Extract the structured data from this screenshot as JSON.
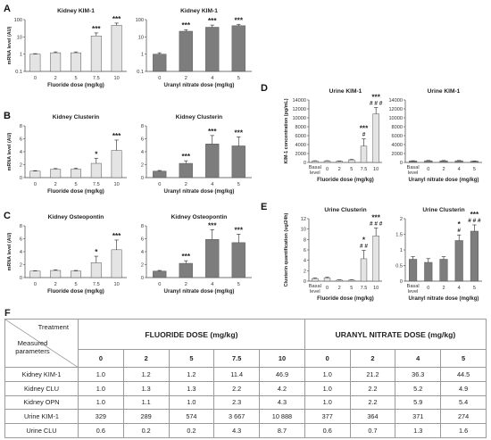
{
  "panel_labels": [
    "A",
    "B",
    "C",
    "D",
    "E",
    "F"
  ],
  "chart_data": [
    {
      "id": "A1",
      "type": "bar",
      "title": "Kidney KIM-1",
      "ylabel": "mRNA level (AU)",
      "xlabel": "Fluoride dose (mg/kg)",
      "yscale": "log",
      "ylim": [
        0.1,
        100
      ],
      "yticks": [
        "0.1",
        "1",
        "10",
        "100"
      ],
      "categories": [
        "0",
        "2",
        "5",
        "7.5",
        "10"
      ],
      "values": [
        1.0,
        1.2,
        1.2,
        11.4,
        46.9
      ],
      "errors": [
        0.07,
        0.15,
        0.15,
        5.5,
        16
      ],
      "color": "#e4e4e4",
      "marks": [
        {
          "i": 3,
          "stars": "***"
        },
        {
          "i": 4,
          "stars": "***"
        }
      ]
    },
    {
      "id": "A2",
      "type": "bar",
      "title": "Kidney KIM-1",
      "ylabel": "",
      "xlabel": "Uranyl nitrate dose (mg/kg)",
      "yscale": "log",
      "ylim": [
        0.1,
        100
      ],
      "yticks": [
        "0.1",
        "1",
        "10",
        "100"
      ],
      "categories": [
        "0",
        "2",
        "4",
        "5"
      ],
      "values": [
        1.0,
        21.2,
        36.3,
        44.5
      ],
      "errors": [
        0.2,
        5,
        12,
        9
      ],
      "color": "#7d7d7d",
      "marks": [
        {
          "i": 1,
          "stars": "***"
        },
        {
          "i": 2,
          "stars": "***"
        },
        {
          "i": 3,
          "stars": "***"
        }
      ]
    },
    {
      "id": "B1",
      "type": "bar",
      "title": "Kidney Clusterin",
      "ylabel": "mRNA level (AU)",
      "xlabel": "Fluoride dose (mg/kg)",
      "yscale": "linear",
      "ylim": [
        0,
        8
      ],
      "yticks": [
        "0",
        "2",
        "4",
        "6",
        "8"
      ],
      "categories": [
        "0",
        "2",
        "5",
        "7.5",
        "10"
      ],
      "values": [
        1.0,
        1.3,
        1.3,
        2.2,
        4.2
      ],
      "errors": [
        0.08,
        0.1,
        0.15,
        0.8,
        1.6
      ],
      "color": "#e4e4e4",
      "marks": [
        {
          "i": 3,
          "stars": "*"
        },
        {
          "i": 4,
          "stars": "***"
        }
      ]
    },
    {
      "id": "B2",
      "type": "bar",
      "title": "Kidney Clusterin",
      "ylabel": "",
      "xlabel": "Uranyl nitrate dose (mg/kg)",
      "yscale": "linear",
      "ylim": [
        0,
        8
      ],
      "yticks": [
        "0",
        "2",
        "4",
        "6",
        "8"
      ],
      "categories": [
        "0",
        "2",
        "4",
        "5"
      ],
      "values": [
        1.0,
        2.2,
        5.2,
        4.9
      ],
      "errors": [
        0.1,
        0.4,
        1.3,
        1.4
      ],
      "color": "#7d7d7d",
      "marks": [
        {
          "i": 1,
          "stars": "***"
        },
        {
          "i": 2,
          "stars": "***"
        },
        {
          "i": 3,
          "stars": "***"
        }
      ]
    },
    {
      "id": "C1",
      "type": "bar",
      "title": "Kidney Osteopontin",
      "ylabel": "mRNA level (AU)",
      "xlabel": "Fluoride dose (mg/kg)",
      "yscale": "linear",
      "ylim": [
        0,
        8
      ],
      "yticks": [
        "0",
        "2",
        "4",
        "6",
        "8"
      ],
      "categories": [
        "0",
        "2",
        "5",
        "7.5",
        "10"
      ],
      "values": [
        1.0,
        1.1,
        1.0,
        2.3,
        4.3
      ],
      "errors": [
        0.05,
        0.1,
        0.1,
        1.0,
        1.5
      ],
      "color": "#e4e4e4",
      "marks": [
        {
          "i": 3,
          "stars": "*"
        },
        {
          "i": 4,
          "stars": "***"
        }
      ]
    },
    {
      "id": "C2",
      "type": "bar",
      "title": "Kidney Osteopontin",
      "ylabel": "",
      "xlabel": "Uranyl nitrate dose (mg/kg)",
      "yscale": "linear",
      "ylim": [
        0,
        8
      ],
      "yticks": [
        "0",
        "2",
        "4",
        "6",
        "8"
      ],
      "categories": [
        "0",
        "2",
        "4",
        "5"
      ],
      "values": [
        1.0,
        2.2,
        5.9,
        5.4
      ],
      "errors": [
        0.1,
        0.4,
        1.5,
        1.3
      ],
      "color": "#7d7d7d",
      "marks": [
        {
          "i": 1,
          "stars": "***"
        },
        {
          "i": 2,
          "stars": "***"
        },
        {
          "i": 3,
          "stars": "***"
        }
      ]
    },
    {
      "id": "D1",
      "type": "bar",
      "title": "Urine  KIM-1",
      "ylabel": "KIM-1 concentration (pg/mL)",
      "xlabel": "Fluoride dose (mg/kg)",
      "yscale": "linear",
      "ylim": [
        0,
        14000
      ],
      "yticks": [
        "0",
        "2000",
        "4000",
        "6000",
        "8000",
        "10000",
        "12000",
        "14000"
      ],
      "categories": [
        "Basal level",
        "0",
        "2",
        "5",
        "7.5",
        "10"
      ],
      "values": [
        320,
        329,
        289,
        574,
        3667,
        10888
      ],
      "errors": [
        60,
        60,
        50,
        100,
        1600,
        1400
      ],
      "color": "#e4e4e4",
      "marks": [
        {
          "i": 4,
          "stars": "***",
          "hash": "#"
        },
        {
          "i": 5,
          "stars": "***",
          "hash": "# # #"
        }
      ]
    },
    {
      "id": "D2",
      "type": "bar",
      "title": "Urine KIM-1",
      "ylabel": "",
      "xlabel": "Uranyl nitrate dose (mg/kg)",
      "yscale": "linear",
      "ylim": [
        0,
        14000
      ],
      "yticks": [
        "0",
        "2000",
        "4000",
        "6000",
        "8000",
        "10000",
        "12000",
        "14000"
      ],
      "categories": [
        "Basal level",
        "0",
        "2",
        "4",
        "5"
      ],
      "values": [
        320,
        377,
        364,
        371,
        274
      ],
      "errors": [
        60,
        60,
        60,
        60,
        50
      ],
      "color": "#7d7d7d",
      "marks": []
    },
    {
      "id": "E1",
      "type": "bar",
      "title": "Urine  Clusterin",
      "ylabel": "Clusterin quantification (ug/24h)",
      "xlabel": "Fluoride dose (mg/kg)",
      "yscale": "linear",
      "ylim": [
        0,
        12
      ],
      "yticks": [
        "0",
        "2",
        "4",
        "6",
        "8",
        "10",
        "12"
      ],
      "categories": [
        "Basal level",
        "0",
        "2",
        "5",
        "7.5",
        "10"
      ],
      "values": [
        0.5,
        0.6,
        0.2,
        0.2,
        4.3,
        8.7
      ],
      "errors": [
        0.1,
        0.15,
        0.05,
        0.05,
        1.6,
        1.5
      ],
      "color": "#e4e4e4",
      "marks": [
        {
          "i": 4,
          "stars": "*",
          "hash": "# #"
        },
        {
          "i": 5,
          "stars": "***",
          "hash": "# # #"
        }
      ]
    },
    {
      "id": "E2",
      "type": "bar",
      "title": "Urine Clusterin",
      "ylabel": "",
      "xlabel": "Uranyl nitrate dose (mg/kg)",
      "yscale": "linear",
      "ylim": [
        0,
        2
      ],
      "yticks": [
        "0",
        "0.5",
        "1",
        "1.5",
        "2"
      ],
      "categories": [
        "Basal level",
        "0",
        "2",
        "4",
        "5"
      ],
      "values": [
        0.7,
        0.6,
        0.7,
        1.3,
        1.6
      ],
      "errors": [
        0.08,
        0.12,
        0.08,
        0.18,
        0.2
      ],
      "color": "#7d7d7d",
      "marks": [
        {
          "i": 3,
          "stars": "*",
          "hash": "#"
        },
        {
          "i": 4,
          "stars": "***",
          "hash": "# # #"
        }
      ]
    }
  ],
  "table": {
    "header_treatment": "Treatment",
    "header_measured": "Measured parameters",
    "group_fluoride": "FLUORIDE DOSE (mg/kg)",
    "group_uranyl": "URANYL NITRATE DOSE (mg/kg)",
    "doses": [
      "0",
      "2",
      "5",
      "7.5",
      "10",
      "0",
      "2",
      "4",
      "5"
    ],
    "rows": [
      {
        "label": "Kidney KIM-1",
        "values": [
          "1.0",
          "1.2",
          "1.2",
          "11.4",
          "46.9",
          "1.0",
          "21.2",
          "36.3",
          "44.5"
        ]
      },
      {
        "label": "Kidney CLU",
        "values": [
          "1.0",
          "1.3",
          "1.3",
          "2.2",
          "4.2",
          "1.0",
          "2.2",
          "5.2",
          "4.9"
        ]
      },
      {
        "label": "Kidney OPN",
        "values": [
          "1.0",
          "1.1",
          "1.0",
          "2.3",
          "4.3",
          "1.0",
          "2.2",
          "5.9",
          "5.4"
        ]
      },
      {
        "label": "Urine KIM-1",
        "values": [
          "329",
          "289",
          "574",
          "3 667",
          "10 888",
          "377",
          "364",
          "371",
          "274"
        ]
      },
      {
        "label": "Urine CLU",
        "values": [
          "0.6",
          "0.2",
          "0.2",
          "4.3",
          "8.7",
          "0.6",
          "0.7",
          "1.3",
          "1.6"
        ]
      }
    ]
  }
}
